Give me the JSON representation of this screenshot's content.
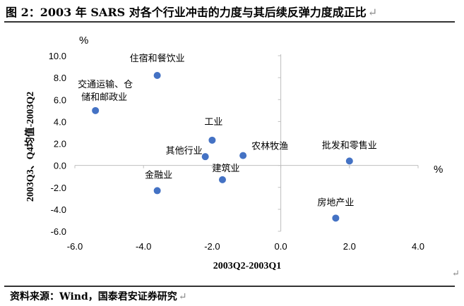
{
  "header": {
    "title": "图 2：2003 年 SARS 对各个行业冲击的力度与其后续反弹力度成正比",
    "return_mark": "↵"
  },
  "footer": {
    "source": "资料来源：Wind，国泰君安证券研究",
    "return_mark": "↵"
  },
  "chart_data": {
    "type": "scatter",
    "xlabel": "2003Q2-2003Q1",
    "ylabel": "2003Q3、Q4均值-2003Q2",
    "x_unit": "%",
    "y_unit": "%",
    "xlim": [
      -6,
      4
    ],
    "ylim": [
      -6,
      10
    ],
    "x_ticks": [
      "-6.0",
      "-4.0",
      "-2.0",
      "0.0",
      "2.0",
      "4.0"
    ],
    "y_ticks": [
      "10.0",
      "8.0",
      "6.0",
      "4.0",
      "2.0",
      "0.0",
      "-2.0",
      "-4.0",
      "-6.0"
    ],
    "marker_color": "#4472C4",
    "points": [
      {
        "label": "住宿和餐饮业",
        "x": -3.6,
        "y": 8.2
      },
      {
        "label": "交通运输、仓储和邮政业",
        "label_lines": [
          "交通运输、仓",
          "储和邮政业"
        ],
        "x": -5.4,
        "y": 5.0
      },
      {
        "label": "工业",
        "x": -2.0,
        "y": 2.3
      },
      {
        "label": "其他行业",
        "x": -2.2,
        "y": 0.8
      },
      {
        "label": "农林牧渔",
        "x": -1.1,
        "y": 0.9
      },
      {
        "label": "建筑业",
        "x": -1.7,
        "y": -1.3
      },
      {
        "label": "金融业",
        "x": -3.6,
        "y": -2.3
      },
      {
        "label": "批发和零售业",
        "x": 2.0,
        "y": 0.4
      },
      {
        "label": "房地产业",
        "x": 1.6,
        "y": -4.8
      }
    ]
  }
}
